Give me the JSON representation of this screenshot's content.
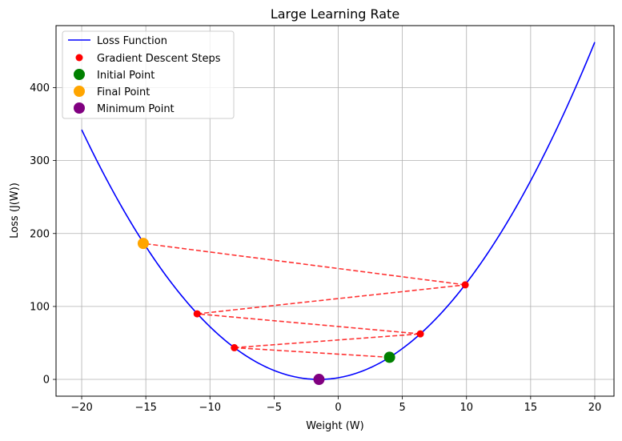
{
  "chart_data": {
    "type": "line",
    "title": "Large Learning Rate",
    "xlabel": "Weight (W)",
    "ylabel": "Loss (J(W))",
    "xlim": [
      -22,
      21.5
    ],
    "ylim": [
      -23,
      485
    ],
    "xticks": [
      -20,
      -15,
      -10,
      -5,
      0,
      5,
      10,
      15,
      20
    ],
    "yticks": [
      0,
      100,
      200,
      300,
      400
    ],
    "grid": true,
    "legend_position": "top-left",
    "loss_function": {
      "name": "Loss Function",
      "color": "#0000ff",
      "formula": "(W + 1.5)^2",
      "x_range": [
        -20,
        20
      ],
      "samples": 200
    },
    "gradient_steps": {
      "name": "Gradient Descent Steps",
      "color": "#ff0000",
      "points": [
        {
          "x": 4.0,
          "y": 30.3
        },
        {
          "x": -8.1,
          "y": 43.5
        },
        {
          "x": 6.4,
          "y": 62.4
        },
        {
          "x": -11.0,
          "y": 89.9
        },
        {
          "x": 9.9,
          "y": 129.6
        },
        {
          "x": -15.2,
          "y": 186.4
        }
      ]
    },
    "initial_point": {
      "name": "Initial Point",
      "color": "#008000",
      "x": 4.0,
      "y": 30.3
    },
    "final_point": {
      "name": "Final Point",
      "color": "#ffa500",
      "x": -15.2,
      "y": 186.4
    },
    "minimum_point": {
      "name": "Minimum Point",
      "color": "#800080",
      "x": -1.5,
      "y": 0
    }
  }
}
